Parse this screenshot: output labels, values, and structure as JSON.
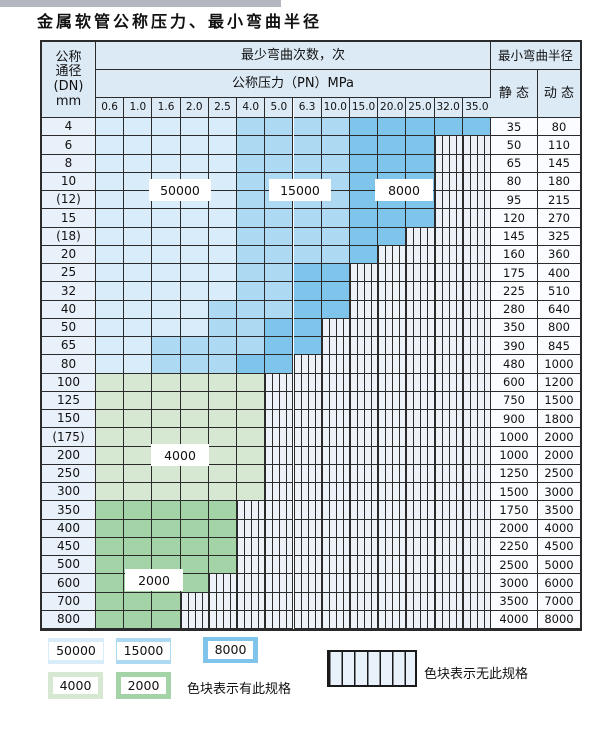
{
  "page": {
    "title": "金属软管公称压力、最小弯曲半径"
  },
  "table": {
    "header": {
      "dn_lines": [
        "公称",
        "通径",
        "(DN)",
        "mm"
      ],
      "bend_times": "最少弯曲次数，次",
      "pressure": "公称压力（PN）MPa",
      "min_radius": "最小弯曲半径",
      "static": "静 态",
      "dynamic": "动 态"
    },
    "pressure_columns": [
      "0.6",
      "1.0",
      "1.6",
      "2.0",
      "2.5",
      "4.0",
      "5.0",
      "6.3",
      "10.0",
      "15.0",
      "20.0",
      "25.0",
      "32.0",
      "35.0"
    ],
    "rows": [
      {
        "dn": "4",
        "static": "35",
        "dynamic": "80",
        "spans": [
          [
            "50000",
            5
          ],
          [
            "15000",
            4
          ],
          [
            "8000",
            5
          ]
        ]
      },
      {
        "dn": "6",
        "static": "50",
        "dynamic": "110",
        "spans": [
          [
            "50000",
            5
          ],
          [
            "15000",
            4
          ],
          [
            "8000",
            3
          ],
          [
            "none",
            2
          ]
        ]
      },
      {
        "dn": "8",
        "static": "65",
        "dynamic": "145",
        "spans": [
          [
            "50000",
            5
          ],
          [
            "15000",
            4
          ],
          [
            "8000",
            3
          ],
          [
            "none",
            2
          ]
        ]
      },
      {
        "dn": "10",
        "static": "80",
        "dynamic": "180",
        "spans": [
          [
            "50000",
            5
          ],
          [
            "15000",
            4
          ],
          [
            "8000",
            3
          ],
          [
            "none",
            2
          ]
        ]
      },
      {
        "dn": "(12)",
        "static": "95",
        "dynamic": "215",
        "spans": [
          [
            "50000",
            5
          ],
          [
            "15000",
            4
          ],
          [
            "8000",
            3
          ],
          [
            "none",
            2
          ]
        ]
      },
      {
        "dn": "15",
        "static": "120",
        "dynamic": "270",
        "spans": [
          [
            "50000",
            5
          ],
          [
            "15000",
            4
          ],
          [
            "8000",
            3
          ],
          [
            "none",
            2
          ]
        ]
      },
      {
        "dn": "(18)",
        "static": "145",
        "dynamic": "325",
        "spans": [
          [
            "50000",
            5
          ],
          [
            "15000",
            4
          ],
          [
            "8000",
            2
          ],
          [
            "none",
            3
          ]
        ]
      },
      {
        "dn": "20",
        "static": "160",
        "dynamic": "360",
        "spans": [
          [
            "50000",
            5
          ],
          [
            "15000",
            4
          ],
          [
            "8000",
            1
          ],
          [
            "none",
            4
          ]
        ]
      },
      {
        "dn": "25",
        "static": "175",
        "dynamic": "400",
        "spans": [
          [
            "50000",
            5
          ],
          [
            "15000",
            2
          ],
          [
            "8000",
            2
          ],
          [
            "none",
            5
          ]
        ]
      },
      {
        "dn": "32",
        "static": "225",
        "dynamic": "510",
        "spans": [
          [
            "50000",
            5
          ],
          [
            "15000",
            2
          ],
          [
            "8000",
            2
          ],
          [
            "none",
            5
          ]
        ]
      },
      {
        "dn": "40",
        "static": "280",
        "dynamic": "640",
        "spans": [
          [
            "50000",
            4
          ],
          [
            "15000",
            3
          ],
          [
            "8000",
            2
          ],
          [
            "none",
            5
          ]
        ]
      },
      {
        "dn": "50",
        "static": "350",
        "dynamic": "800",
        "spans": [
          [
            "50000",
            4
          ],
          [
            "15000",
            2
          ],
          [
            "8000",
            2
          ],
          [
            "none",
            6
          ]
        ]
      },
      {
        "dn": "65",
        "static": "390",
        "dynamic": "845",
        "spans": [
          [
            "50000",
            2
          ],
          [
            "15000",
            4
          ],
          [
            "8000",
            2
          ],
          [
            "none",
            6
          ]
        ]
      },
      {
        "dn": "80",
        "static": "480",
        "dynamic": "1000",
        "spans": [
          [
            "50000",
            2
          ],
          [
            "15000",
            3
          ],
          [
            "8000",
            2
          ],
          [
            "none",
            7
          ]
        ]
      },
      {
        "dn": "100",
        "static": "600",
        "dynamic": "1200",
        "spans": [
          [
            "4000",
            6
          ],
          [
            "none",
            8
          ]
        ]
      },
      {
        "dn": "125",
        "static": "750",
        "dynamic": "1500",
        "spans": [
          [
            "4000",
            6
          ],
          [
            "none",
            8
          ]
        ]
      },
      {
        "dn": "150",
        "static": "900",
        "dynamic": "1800",
        "spans": [
          [
            "4000",
            6
          ],
          [
            "none",
            8
          ]
        ]
      },
      {
        "dn": "(175)",
        "static": "1000",
        "dynamic": "2000",
        "spans": [
          [
            "4000",
            6
          ],
          [
            "none",
            8
          ]
        ]
      },
      {
        "dn": "200",
        "static": "1000",
        "dynamic": "2000",
        "spans": [
          [
            "4000",
            6
          ],
          [
            "none",
            8
          ]
        ]
      },
      {
        "dn": "250",
        "static": "1250",
        "dynamic": "2500",
        "spans": [
          [
            "4000",
            6
          ],
          [
            "none",
            8
          ]
        ]
      },
      {
        "dn": "300",
        "static": "1500",
        "dynamic": "3000",
        "spans": [
          [
            "4000",
            6
          ],
          [
            "none",
            8
          ]
        ]
      },
      {
        "dn": "350",
        "static": "1750",
        "dynamic": "3500",
        "spans": [
          [
            "2000",
            5
          ],
          [
            "none",
            9
          ]
        ]
      },
      {
        "dn": "400",
        "static": "2000",
        "dynamic": "4000",
        "spans": [
          [
            "2000",
            5
          ],
          [
            "none",
            9
          ]
        ]
      },
      {
        "dn": "450",
        "static": "2250",
        "dynamic": "4500",
        "spans": [
          [
            "2000",
            5
          ],
          [
            "none",
            9
          ]
        ]
      },
      {
        "dn": "500",
        "static": "2500",
        "dynamic": "5000",
        "spans": [
          [
            "2000",
            5
          ],
          [
            "none",
            9
          ]
        ]
      },
      {
        "dn": "600",
        "static": "3000",
        "dynamic": "6000",
        "spans": [
          [
            "2000",
            4
          ],
          [
            "none",
            10
          ]
        ]
      },
      {
        "dn": "700",
        "static": "3500",
        "dynamic": "7000",
        "spans": [
          [
            "2000",
            3
          ],
          [
            "none",
            11
          ]
        ]
      },
      {
        "dn": "800",
        "static": "4000",
        "dynamic": "8000",
        "spans": [
          [
            "2000",
            3
          ],
          [
            "none",
            11
          ]
        ]
      }
    ]
  },
  "region_labels": [
    {
      "text": "50000"
    },
    {
      "text": "15000"
    },
    {
      "text": "8000"
    },
    {
      "text": "4000"
    },
    {
      "text": "2000"
    }
  ],
  "legend": {
    "items": [
      {
        "label": "50000",
        "color": "#d9ecf9"
      },
      {
        "label": "15000",
        "color": "#aed9f3"
      },
      {
        "label": "8000",
        "color": "#7fc5eb"
      },
      {
        "label": "4000",
        "color": "#d6e8d2"
      },
      {
        "label": "2000",
        "color": "#a4d3a8"
      }
    ],
    "present_note": "色块表示有此规格",
    "absent_note": "色块表示无此规格"
  },
  "colors": {
    "c50000": "#d9ecf9",
    "c15000": "#aed9f3",
    "c8000": "#7fc5eb",
    "c4000": "#d6e8d2",
    "c2000": "#a4d3a8",
    "hatch_bg": "#edf2f9",
    "grid": "#2b2b2b"
  }
}
